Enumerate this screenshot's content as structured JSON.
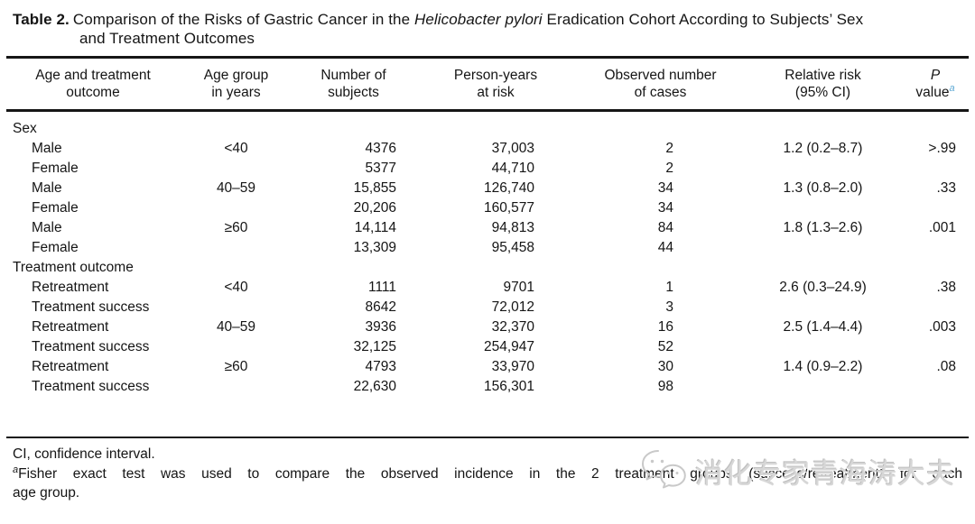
{
  "title": {
    "label": "Table 2.",
    "line1_pre": "Comparison of the Risks of Gastric Cancer in the ",
    "line1_italic": "Helicobacter pylori",
    "line1_post": " Eradication Cohort According to Subjects’ Sex",
    "line2": "and Treatment Outcomes"
  },
  "table": {
    "headers": [
      {
        "line1": "Age and treatment",
        "line2": "outcome"
      },
      {
        "line1": "Age group",
        "line2": "in years"
      },
      {
        "line1": "Number of",
        "line2": "subjects"
      },
      {
        "line1": "Person-years",
        "line2": "at risk"
      },
      {
        "line1": "Observed number",
        "line2": "of cases"
      },
      {
        "line1": "Relative risk",
        "line2": "(95% CI)"
      },
      {
        "line1": "P",
        "line2": "value",
        "superscript": "a"
      }
    ],
    "sections": [
      {
        "label": "Sex",
        "rows": [
          {
            "outcome": "Male",
            "age_group": "<40",
            "subjects": "4376",
            "person_years": "37,003",
            "cases": "2",
            "relative_risk": "1.2 (0.2–8.7)",
            "p_value": ">.99"
          },
          {
            "outcome": "Female",
            "age_group": "",
            "subjects": "5377",
            "person_years": "44,710",
            "cases": "2",
            "relative_risk": "",
            "p_value": ""
          },
          {
            "outcome": "Male",
            "age_group": "40–59",
            "subjects": "15,855",
            "person_years": "126,740",
            "cases": "34",
            "relative_risk": "1.3 (0.8–2.0)",
            "p_value": ".33"
          },
          {
            "outcome": "Female",
            "age_group": "",
            "subjects": "20,206",
            "person_years": "160,577",
            "cases": "34",
            "relative_risk": "",
            "p_value": ""
          },
          {
            "outcome": "Male",
            "age_group": "≥60",
            "subjects": "14,114",
            "person_years": "94,813",
            "cases": "84",
            "relative_risk": "1.8 (1.3–2.6)",
            "p_value": ".001"
          },
          {
            "outcome": "Female",
            "age_group": "",
            "subjects": "13,309",
            "person_years": "95,458",
            "cases": "44",
            "relative_risk": "",
            "p_value": ""
          }
        ]
      },
      {
        "label": "Treatment outcome",
        "rows": [
          {
            "outcome": "Retreatment",
            "age_group": "<40",
            "subjects": "1111",
            "person_years": "9701",
            "cases": "1",
            "relative_risk": "2.6 (0.3–24.9)",
            "p_value": ".38"
          },
          {
            "outcome": "Treatment success",
            "age_group": "",
            "subjects": "8642",
            "person_years": "72,012",
            "cases": "3",
            "relative_risk": "",
            "p_value": ""
          },
          {
            "outcome": "Retreatment",
            "age_group": "40–59",
            "subjects": "3936",
            "person_years": "32,370",
            "cases": "16",
            "relative_risk": "2.5 (1.4–4.4)",
            "p_value": ".003"
          },
          {
            "outcome": "Treatment success",
            "age_group": "",
            "subjects": "32,125",
            "person_years": "254,947",
            "cases": "52",
            "relative_risk": "",
            "p_value": ""
          },
          {
            "outcome": "Retreatment",
            "age_group": "≥60",
            "subjects": "4793",
            "person_years": "33,970",
            "cases": "30",
            "relative_risk": "1.4 (0.9–2.2)",
            "p_value": ".08"
          },
          {
            "outcome": "Treatment success",
            "age_group": "",
            "subjects": "22,630",
            "person_years": "156,301",
            "cases": "98",
            "relative_risk": "",
            "p_value": ""
          }
        ]
      }
    ]
  },
  "footnotes": {
    "abbreviation": "CI, confidence interval.",
    "a_marker": "a",
    "a_line1": "Fisher exact test was used to compare the observed incidence in the 2 treatment groups (success/retreatment) for each",
    "a_line2": "age group."
  },
  "watermark": {
    "text": "消化专家青海涛大夫",
    "icon": "wechat-icon"
  },
  "colors": {
    "superscript_blue": "#5ea9d4",
    "text": "#151515",
    "watermark_gray": "#d7d7d7"
  }
}
